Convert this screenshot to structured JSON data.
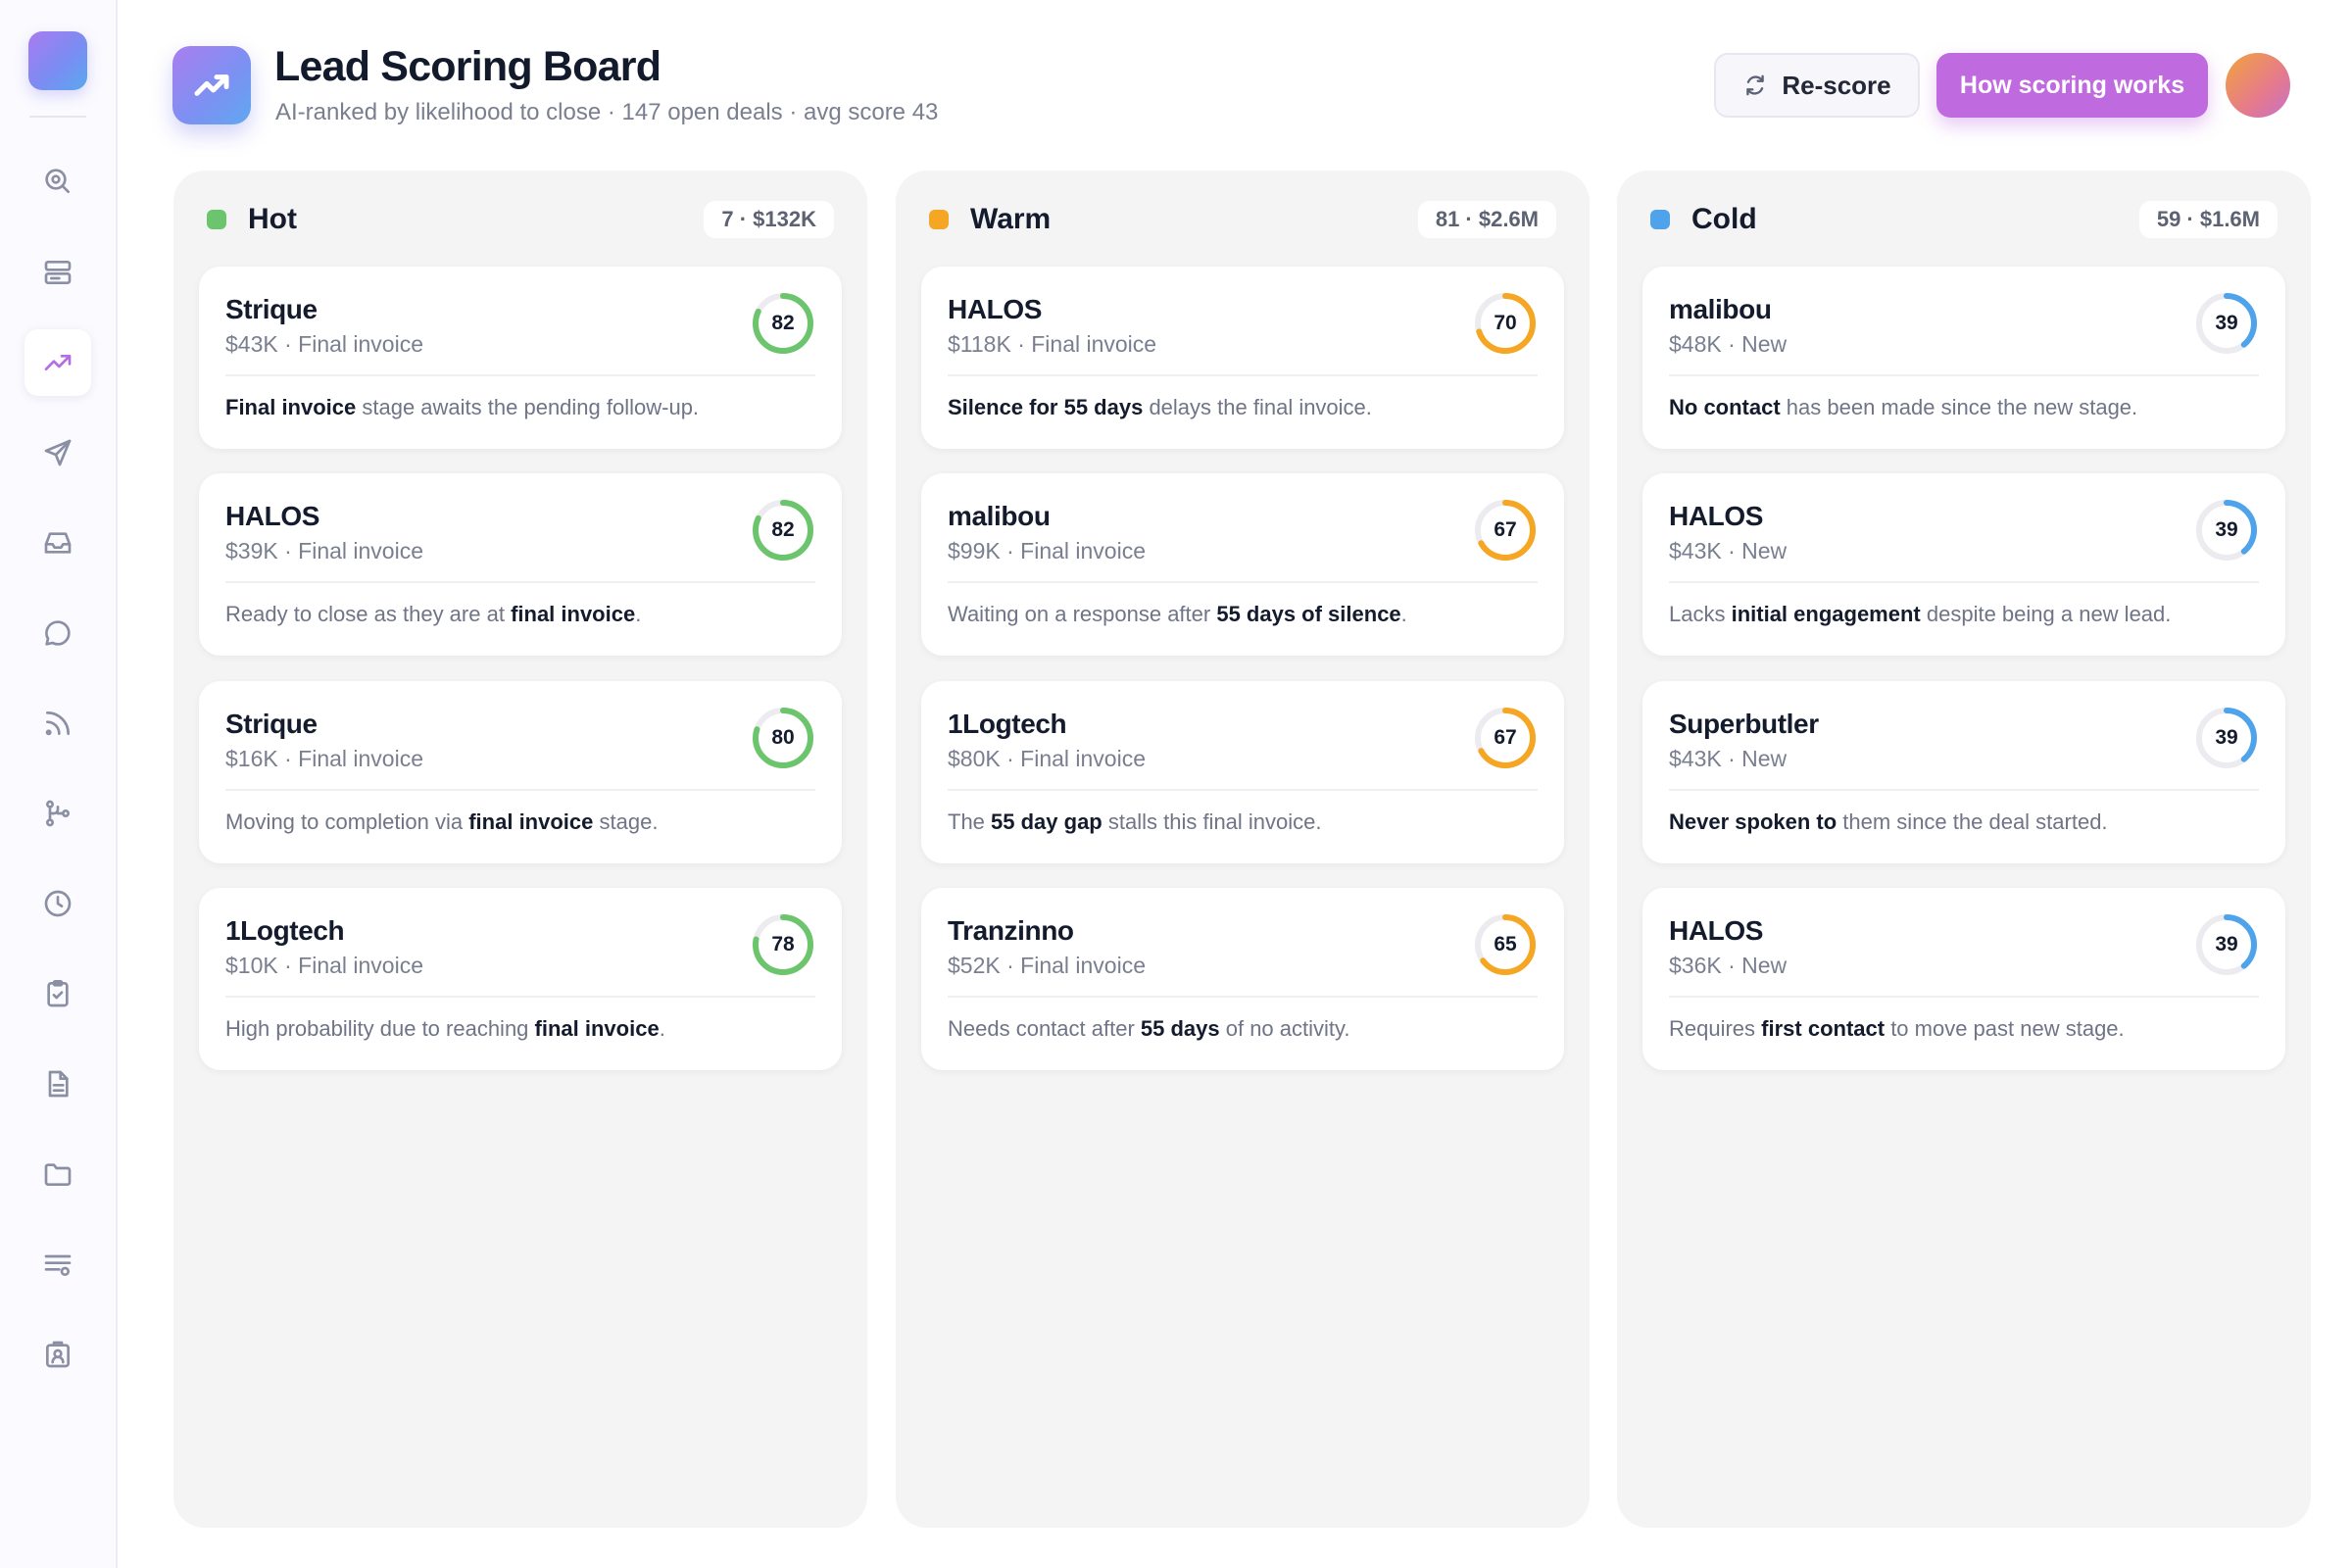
{
  "header": {
    "title": "Lead Scoring Board",
    "subtitle": "AI-ranked by likelihood to close · 147 open deals · avg score 43",
    "rescore_label": "Re-score",
    "how_label": "How scoring works"
  },
  "sidebar": {
    "items": [
      {
        "icon": "search-icon"
      },
      {
        "icon": "cards-icon"
      },
      {
        "icon": "trending-up-icon",
        "active": true
      },
      {
        "icon": "send-icon"
      },
      {
        "icon": "inbox-icon"
      },
      {
        "icon": "chat-icon"
      },
      {
        "icon": "feed-icon"
      },
      {
        "icon": "workflow-icon"
      },
      {
        "icon": "clock-icon"
      },
      {
        "icon": "clipboard-check-icon"
      },
      {
        "icon": "document-icon"
      },
      {
        "icon": "folder-icon"
      },
      {
        "icon": "list-settings-icon"
      },
      {
        "icon": "contact-badge-icon"
      }
    ]
  },
  "colors": {
    "hot": "#6cc56c",
    "warm": "#f5a623",
    "cold": "#4ea3ea",
    "accent": "#c06ae0"
  },
  "columns": [
    {
      "key": "hot",
      "title": "Hot",
      "count": "7 · $132K",
      "cards": [
        {
          "name": "Strique",
          "meta": "$43K · Final invoice",
          "score": 82,
          "note": [
            {
              "b": true,
              "t": "Final invoice"
            },
            {
              "b": false,
              "t": " stage awaits the pending follow-up."
            }
          ]
        },
        {
          "name": "HALOS",
          "meta": "$39K · Final invoice",
          "score": 82,
          "note": [
            {
              "b": false,
              "t": "Ready to close as they are at "
            },
            {
              "b": true,
              "t": "final invoice"
            },
            {
              "b": false,
              "t": "."
            }
          ]
        },
        {
          "name": "Strique",
          "meta": "$16K · Final invoice",
          "score": 80,
          "note": [
            {
              "b": false,
              "t": "Moving to completion via "
            },
            {
              "b": true,
              "t": "final invoice"
            },
            {
              "b": false,
              "t": " stage."
            }
          ]
        },
        {
          "name": "1Logtech",
          "meta": "$10K · Final invoice",
          "score": 78,
          "note": [
            {
              "b": false,
              "t": "High probability due to reaching "
            },
            {
              "b": true,
              "t": "final invoice"
            },
            {
              "b": false,
              "t": "."
            }
          ]
        }
      ]
    },
    {
      "key": "warm",
      "title": "Warm",
      "count": "81 · $2.6M",
      "cards": [
        {
          "name": "HALOS",
          "meta": "$118K · Final invoice",
          "score": 70,
          "note": [
            {
              "b": true,
              "t": "Silence for 55 days"
            },
            {
              "b": false,
              "t": " delays the final invoice."
            }
          ]
        },
        {
          "name": "malibou",
          "meta": "$99K · Final invoice",
          "score": 67,
          "note": [
            {
              "b": false,
              "t": "Waiting on a response after "
            },
            {
              "b": true,
              "t": "55 days of silence"
            },
            {
              "b": false,
              "t": "."
            }
          ]
        },
        {
          "name": "1Logtech",
          "meta": "$80K · Final invoice",
          "score": 67,
          "note": [
            {
              "b": false,
              "t": "The "
            },
            {
              "b": true,
              "t": "55 day gap"
            },
            {
              "b": false,
              "t": " stalls this final invoice."
            }
          ]
        },
        {
          "name": "Tranzinno",
          "meta": "$52K · Final invoice",
          "score": 65,
          "note": [
            {
              "b": false,
              "t": "Needs contact after "
            },
            {
              "b": true,
              "t": "55 days"
            },
            {
              "b": false,
              "t": " of no activity."
            }
          ]
        }
      ]
    },
    {
      "key": "cold",
      "title": "Cold",
      "count": "59 · $1.6M",
      "cards": [
        {
          "name": "malibou",
          "meta": "$48K · New",
          "score": 39,
          "note": [
            {
              "b": true,
              "t": "No contact"
            },
            {
              "b": false,
              "t": " has been made since the new stage."
            }
          ]
        },
        {
          "name": "HALOS",
          "meta": "$43K · New",
          "score": 39,
          "note": [
            {
              "b": false,
              "t": "Lacks "
            },
            {
              "b": true,
              "t": "initial engagement"
            },
            {
              "b": false,
              "t": " despite being a new lead."
            }
          ]
        },
        {
          "name": "Superbutler",
          "meta": "$43K · New",
          "score": 39,
          "note": [
            {
              "b": true,
              "t": "Never spoken to"
            },
            {
              "b": false,
              "t": " them since the deal started."
            }
          ]
        },
        {
          "name": "HALOS",
          "meta": "$36K · New",
          "score": 39,
          "note": [
            {
              "b": false,
              "t": "Requires "
            },
            {
              "b": true,
              "t": "first contact"
            },
            {
              "b": false,
              "t": " to move past new stage."
            }
          ]
        }
      ]
    }
  ]
}
